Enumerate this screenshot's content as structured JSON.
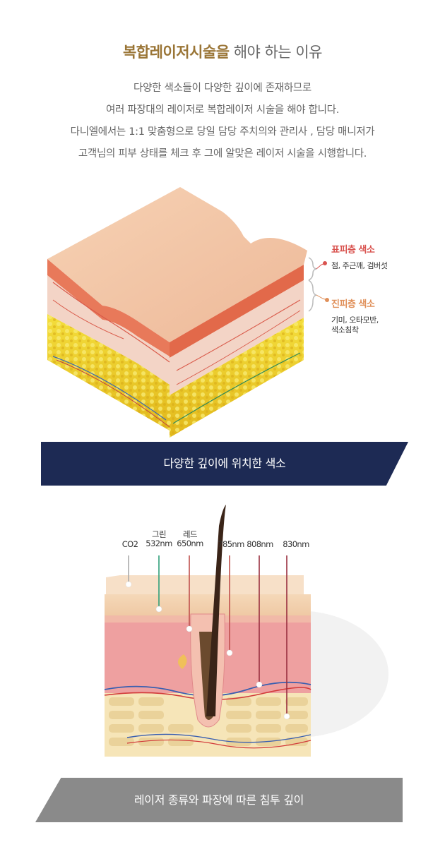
{
  "header": {
    "title_accent": "복합레이저시술을",
    "title_rest": " 해야 하는 이유",
    "intro_lines": [
      "다양한 색소들이 다양한 깊이에 존재하므로",
      "여러 파장대의 레이저로 복합레이저 시술을 해야 합니다.",
      "다니엘에서는 1:1 맞춤형으로 당일 담당 주치의와 관리사 , 담당 매니저가",
      "고객님의 피부 상태를 체크 후 그에 알맞은 레이저 시술을 시행합니다."
    ]
  },
  "figure1": {
    "epidermis_title": "표피층 색소",
    "epidermis_desc": "점, 주근깨, 검버섯",
    "dermis_title": "진피층 색소",
    "dermis_desc_1": "기미, 오타모반,",
    "dermis_desc_2": "색소침착",
    "caption": "다양한 깊이에 위치한 색소",
    "colors": {
      "caption_bg": "#1d2a54",
      "epidermis_label": "#d9534f",
      "dermis_label": "#e0905a"
    }
  },
  "figure2": {
    "wavelengths": [
      {
        "name": "",
        "value": "CO2"
      },
      {
        "name": "그린",
        "value": "532nm"
      },
      {
        "name": "레드",
        "value": "650nm"
      },
      {
        "name": "",
        "value": "785nm"
      },
      {
        "name": "",
        "value": "808nm"
      },
      {
        "name": "",
        "value": "830nm"
      }
    ],
    "caption": "레이저 종류와 파장에 따른 침투 깊이",
    "colors": {
      "caption_bg": "#8a8a8a",
      "green_line": "#2f9f7a",
      "red_line": "#c0504d"
    }
  }
}
